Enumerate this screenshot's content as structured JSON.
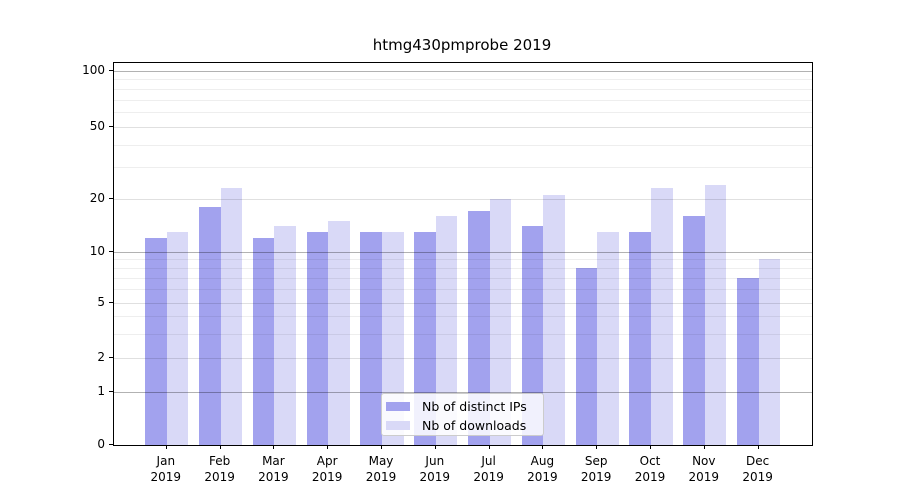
{
  "figure": {
    "title": "htmg430pmprobe 2019"
  },
  "chart_data": {
    "type": "bar",
    "title": "htmg430pmprobe 2019",
    "categories": [
      "Jan",
      "Feb",
      "Mar",
      "Apr",
      "May",
      "Jun",
      "Jul",
      "Aug",
      "Sep",
      "Oct",
      "Nov",
      "Dec"
    ],
    "year_label": "2019",
    "series": [
      {
        "name": "Nb of distinct IPs",
        "color": "#a2a2ee",
        "values": [
          12,
          18,
          12,
          13,
          13,
          13,
          17,
          14,
          8,
          13,
          16,
          7
        ]
      },
      {
        "name": "Nb of downloads",
        "color": "#d9d9f7",
        "values": [
          13,
          23,
          14,
          15,
          13,
          16,
          20,
          21,
          13,
          23,
          24,
          9
        ]
      }
    ],
    "yticks": [
      0,
      1,
      2,
      5,
      10,
      20,
      50,
      100
    ],
    "minor_gridlines": [
      3,
      4,
      6,
      7,
      8,
      9,
      30,
      40,
      60,
      70,
      80,
      90
    ],
    "ylim": [
      0,
      100
    ],
    "yscale": "log-like",
    "grid": true,
    "legend_position": "bottom-center"
  },
  "legend": {
    "items": [
      {
        "label": "Nb of distinct IPs"
      },
      {
        "label": "Nb of downloads"
      }
    ]
  }
}
